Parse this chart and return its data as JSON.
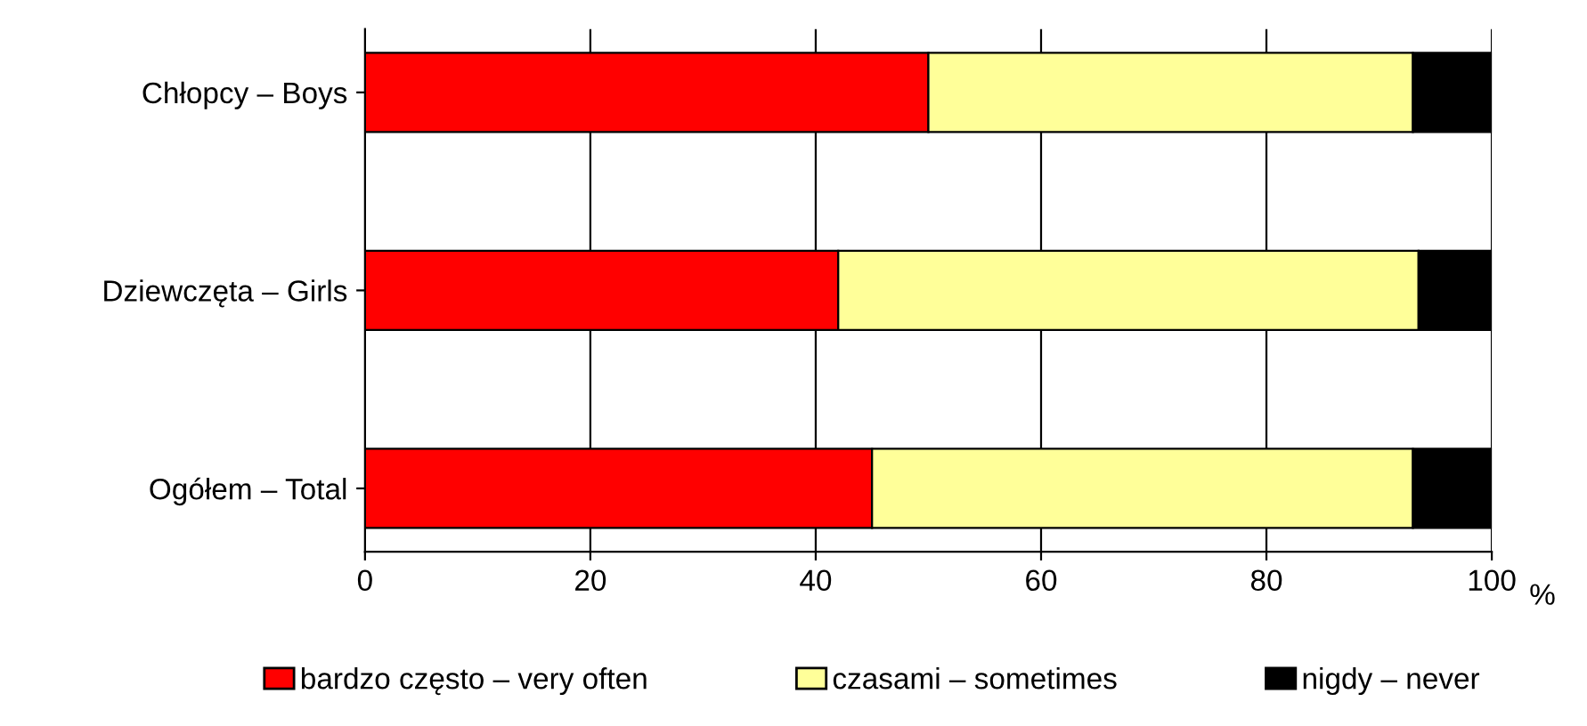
{
  "chart_data": {
    "type": "bar",
    "orientation": "horizontal",
    "stacked": true,
    "categories": [
      "Chłopcy – Boys",
      "Dziewczęta – Girls",
      "Ogółem – Total"
    ],
    "series": [
      {
        "name": "bardzo często – very often",
        "color": "#ff0000",
        "values": [
          50,
          42,
          45
        ]
      },
      {
        "name": "czasami – sometimes",
        "color": "#ffff99",
        "values": [
          43,
          51.5,
          48
        ]
      },
      {
        "name": "nigdy – never",
        "color": "#000000",
        "values": [
          7,
          6.5,
          7
        ]
      }
    ],
    "xlim": [
      0,
      100
    ],
    "xticks": [
      0,
      20,
      40,
      60,
      80,
      100
    ],
    "xlabel": "%",
    "grid": "x",
    "legend": "bottom"
  }
}
